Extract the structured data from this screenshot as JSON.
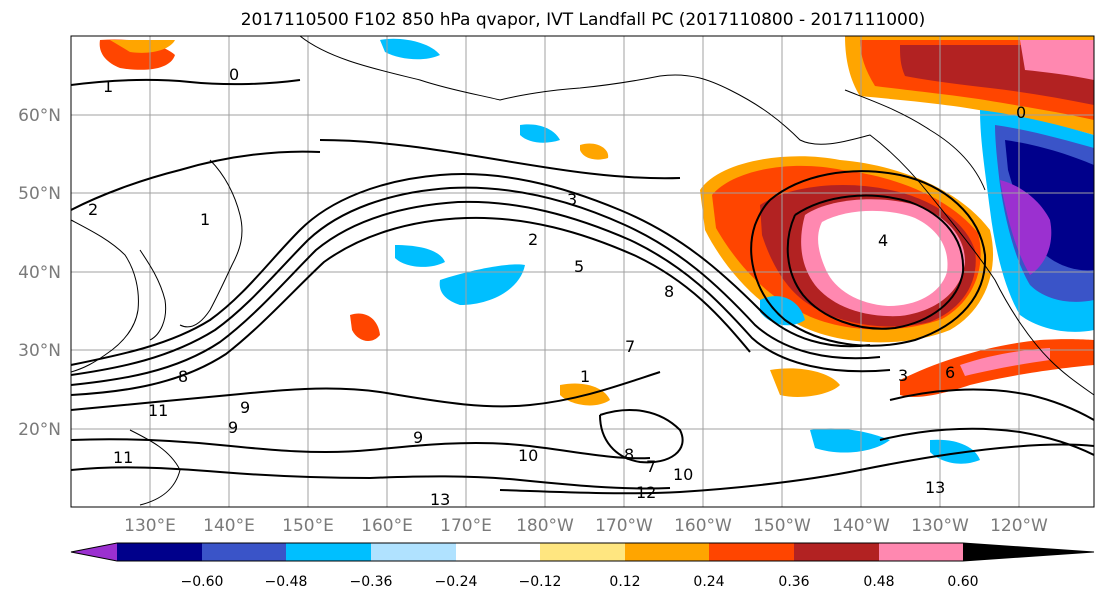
{
  "title": "2017110500 F102 850 hPa qvapor, IVT Landfall PC (2017110800 - 2017111000)",
  "lat_labels": [
    "60°N",
    "50°N",
    "40°N",
    "30°N",
    "20°N"
  ],
  "lon_labels": [
    "130°E",
    "140°E",
    "150°E",
    "160°E",
    "170°E",
    "180°W",
    "170°W",
    "160°W",
    "150°W",
    "140°W",
    "130°W",
    "120°W"
  ],
  "colorbar": {
    "colors": [
      "#9b30d0",
      "#00008b",
      "#3a54c8",
      "#00bfff",
      "#b0e2ff",
      "#ffffff",
      "#ffe680",
      "#ffa500",
      "#ff4500",
      "#b22222",
      "#ff88b0"
    ],
    "ticks": [
      "−0.60",
      "−0.48",
      "−0.36",
      "−0.24",
      "−0.12",
      "0.12",
      "0.24",
      "0.36",
      "0.48",
      "0.60"
    ],
    "extend": "both"
  },
  "contour_labels": [
    "1",
    "0",
    "2",
    "3",
    "2",
    "5",
    "8",
    "7",
    "1",
    "8",
    "9",
    "11",
    "11",
    "9",
    "9",
    "10",
    "8",
    "7",
    "10",
    "12",
    "13",
    "13",
    "3",
    "6",
    "0",
    "1",
    "4"
  ],
  "palette": {
    "contour": "#000000",
    "grid": "#a0a0a0",
    "land": "#000000"
  }
}
